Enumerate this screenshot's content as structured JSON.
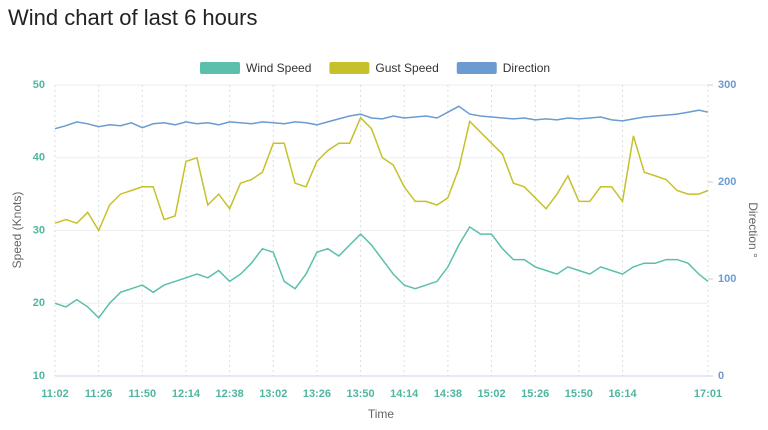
{
  "chart_data": {
    "type": "line",
    "title": "Wind chart of last 6 hours",
    "xlabel": "Time",
    "ylabel": "Speed (Knots)",
    "y2label": "Direction °",
    "legend": "top",
    "grid": true,
    "xlim": [
      "11:02",
      "17:01"
    ],
    "xticks": [
      "11:02",
      "11:26",
      "11:50",
      "12:14",
      "12:38",
      "13:02",
      "13:26",
      "13:50",
      "14:14",
      "14:38",
      "15:02",
      "15:26",
      "15:50",
      "16:14",
      "17:01"
    ],
    "ylim": [
      10,
      50
    ],
    "yticks": [
      10,
      20,
      30,
      40,
      50
    ],
    "y2lim": [
      0,
      300
    ],
    "y2ticks": [
      0,
      100,
      200,
      300
    ],
    "x": [
      "11:02",
      "11:08",
      "11:14",
      "11:20",
      "11:26",
      "11:32",
      "11:38",
      "11:44",
      "11:50",
      "11:56",
      "12:02",
      "12:08",
      "12:14",
      "12:20",
      "12:26",
      "12:32",
      "12:38",
      "12:44",
      "12:50",
      "12:56",
      "13:02",
      "13:08",
      "13:14",
      "13:20",
      "13:26",
      "13:32",
      "13:38",
      "13:44",
      "13:50",
      "13:56",
      "14:02",
      "14:08",
      "14:14",
      "14:20",
      "14:26",
      "14:32",
      "14:38",
      "14:44",
      "14:50",
      "14:56",
      "15:02",
      "15:08",
      "15:14",
      "15:20",
      "15:26",
      "15:32",
      "15:38",
      "15:44",
      "15:50",
      "15:56",
      "16:02",
      "16:08",
      "16:14",
      "16:20",
      "16:26",
      "16:32",
      "16:38",
      "16:44",
      "16:50",
      "16:56",
      "17:01"
    ],
    "series": [
      {
        "name": "Wind Speed",
        "color": "#5bbfad",
        "values": [
          20,
          19.5,
          20.5,
          19.5,
          18,
          20,
          21.5,
          22,
          22.5,
          21.5,
          22.5,
          23,
          23.5,
          24,
          23.5,
          24.5,
          23,
          24,
          25.5,
          27.5,
          27,
          23,
          22,
          24,
          27,
          27.5,
          26.5,
          28,
          29.5,
          28,
          26,
          24,
          22.5,
          22,
          22.5,
          23,
          25,
          28,
          30.5,
          29.5,
          29.5,
          27.5,
          26,
          26,
          25,
          24.5,
          24,
          25,
          24.5,
          24,
          25,
          24.5,
          24,
          25,
          25.5,
          25.5,
          26,
          26,
          25.5,
          24,
          23
        ]
      },
      {
        "name": "Gust Speed",
        "color": "#c6c12a",
        "values": [
          31,
          31.5,
          31,
          32.5,
          30,
          33.5,
          35,
          35.5,
          36,
          36,
          31.5,
          32,
          39.5,
          40,
          33.5,
          35,
          33,
          36.5,
          37,
          38,
          42,
          42,
          36.5,
          36,
          39.5,
          41,
          42,
          42,
          45.5,
          44,
          40,
          39,
          36,
          34,
          34,
          33.5,
          34.5,
          38.5,
          45,
          43.5,
          42,
          40.5,
          36.5,
          36,
          34.5,
          33,
          35,
          37.5,
          34,
          34,
          36,
          36,
          34,
          43,
          38,
          37.5,
          37,
          35.5,
          35,
          35,
          35.5
        ]
      },
      {
        "name": "Direction",
        "color": "#6b9bd1",
        "axis": "y2",
        "values": [
          255,
          258,
          262,
          260,
          257,
          259,
          258,
          261,
          256,
          260,
          261,
          259,
          262,
          260,
          261,
          259,
          262,
          261,
          260,
          262,
          261,
          260,
          262,
          261,
          259,
          262,
          265,
          268,
          270,
          266,
          265,
          268,
          266,
          267,
          268,
          266,
          272,
          278,
          270,
          268,
          267,
          266,
          265,
          266,
          264,
          265,
          264,
          266,
          265,
          266,
          267,
          264,
          263,
          265,
          267,
          268,
          269,
          270,
          272,
          274,
          272
        ]
      }
    ]
  }
}
